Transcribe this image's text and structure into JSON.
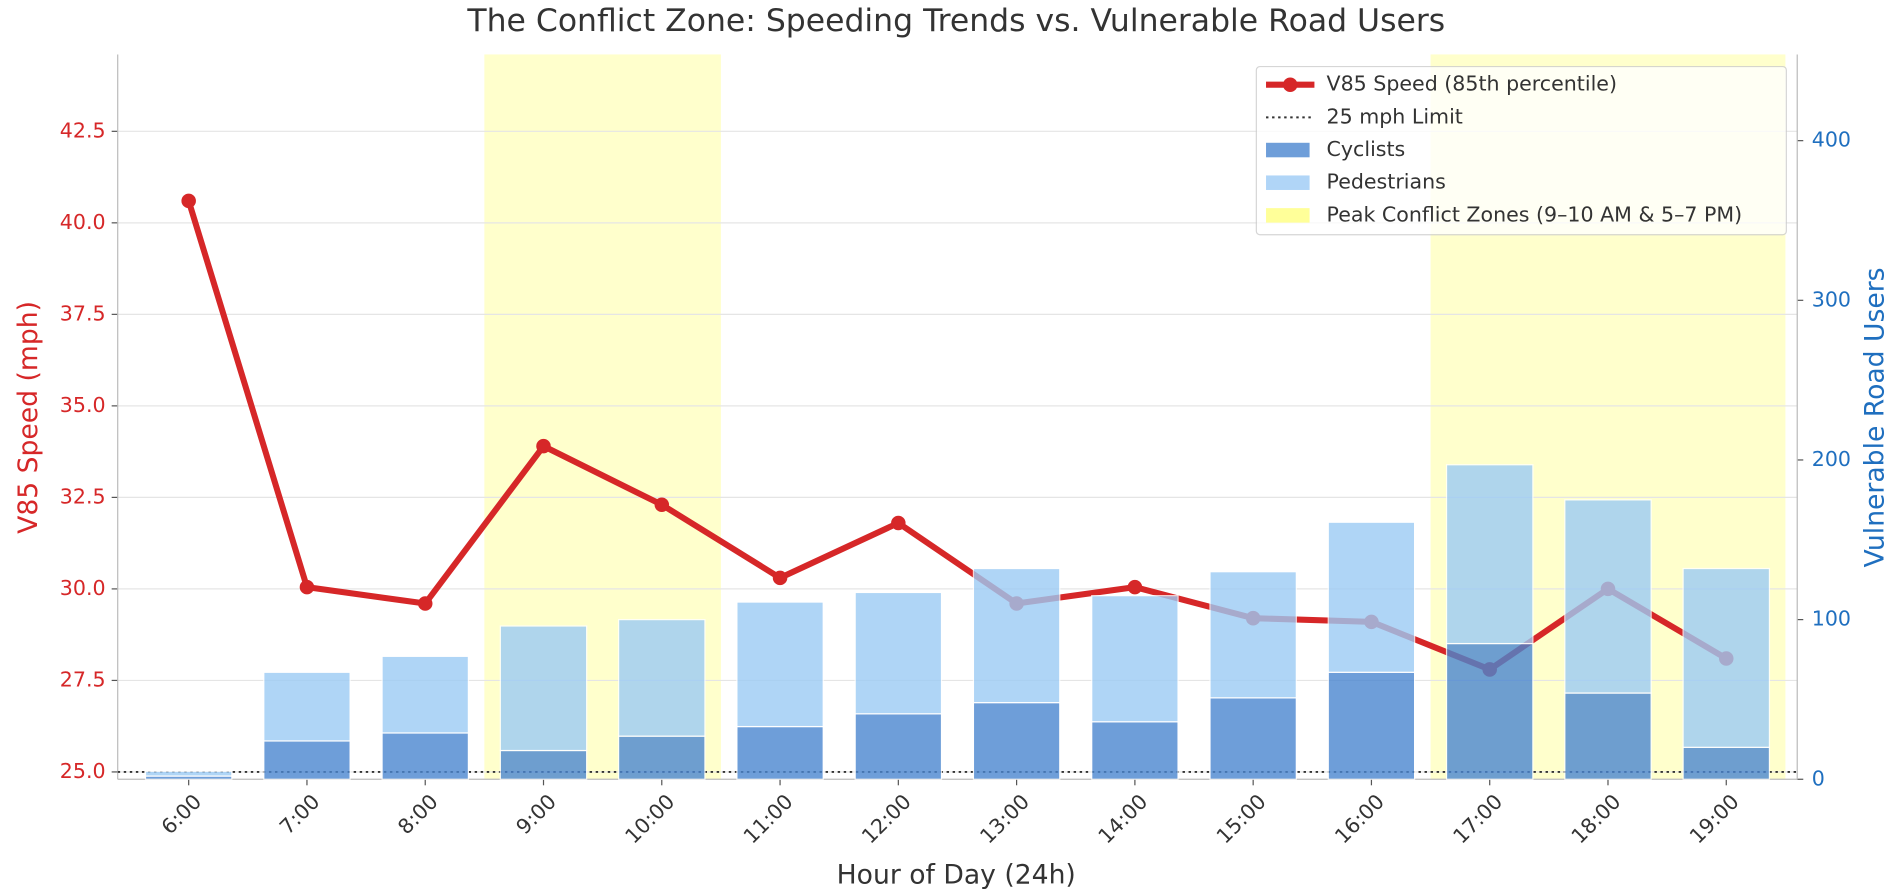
{
  "chart_data": {
    "type": "combo",
    "title": "The Conflict Zone: Speeding Trends vs. Vulnerable Road Users",
    "x_label": "Hour of Day (24h)",
    "y_label": "V85 Speed (mph)",
    "y2_label": "Vulnerable Road Users",
    "categories": [
      "6:00",
      "7:00",
      "8:00",
      "9:00",
      "10:00",
      "11:00",
      "12:00",
      "13:00",
      "14:00",
      "15:00",
      "16:00",
      "17:00",
      "18:00",
      "19:00"
    ],
    "xlim": [
      -0.6,
      13.6
    ],
    "ylim": [
      24.8,
      44.6
    ],
    "yticks": [
      {
        "value": 25,
        "label": "25.0"
      },
      {
        "value": 27.5,
        "label": "27.5"
      },
      {
        "value": 30,
        "label": "30.0"
      },
      {
        "value": 32.5,
        "label": "32.5"
      },
      {
        "value": 35,
        "label": "35.0"
      },
      {
        "value": 37.5,
        "label": "37.5"
      },
      {
        "value": 40,
        "label": "40.0"
      },
      {
        "value": 42.5,
        "label": "42.5"
      }
    ],
    "y2lim": [
      0,
      454
    ],
    "y2ticks": [
      0,
      100,
      200,
      300,
      400
    ],
    "grid": true,
    "legend": "upper right",
    "highlight": {
      "name": "Peak Conflict Zones (9–10 AM & 5–7 PM)",
      "color": "#ffff99",
      "spans": [
        [
          2.5,
          4.5
        ],
        [
          10.5,
          13.5
        ]
      ]
    },
    "reference_line": {
      "name": "25 mph Limit",
      "value": 25,
      "color": "#333333"
    },
    "series": [
      {
        "name": "V85 Speed (85th percentile)",
        "type": "line",
        "color": "#d62728",
        "values": [
          40.6,
          30.05,
          29.6,
          33.9,
          32.3,
          30.3,
          31.8,
          29.6,
          30.05,
          29.2,
          29.1,
          27.8,
          30.0,
          28.1
        ]
      },
      {
        "name": "Cyclists",
        "type": "bar",
        "axis": "y2",
        "color": "#4a86d0",
        "values": [
          2,
          24,
          29,
          18,
          27,
          33,
          41,
          48,
          36,
          51,
          67,
          85,
          54,
          20
        ]
      },
      {
        "name": "Pedestrians",
        "type": "bar",
        "axis": "y2",
        "color": "#9ccbf5",
        "values": [
          3,
          43,
          48,
          78,
          73,
          78,
          76,
          84,
          79,
          79,
          94,
          112,
          121,
          112
        ]
      }
    ]
  }
}
